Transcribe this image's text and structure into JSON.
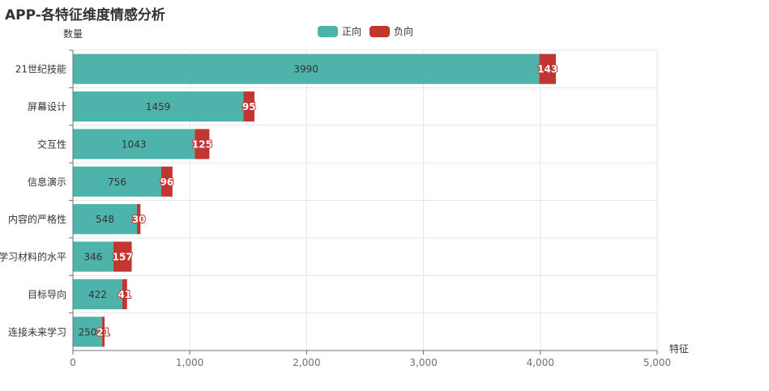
{
  "title": "APP-各特征维度情感分析",
  "colors": {
    "positive": "#4db3ab",
    "negative": "#c23531"
  },
  "chart_data": {
    "type": "bar",
    "orientation": "horizontal",
    "stacked": true,
    "title": "APP-各特征维度情感分析",
    "xlabel": "特征",
    "ylabel": "数量",
    "xlim": [
      0,
      5000
    ],
    "xticks": [
      "0",
      "1,000",
      "2,000",
      "3,000",
      "4,000",
      "5,000"
    ],
    "grid": true,
    "legend_position": "top-center",
    "categories": [
      "连接未来学习",
      "目标导向",
      "学习材料的水平",
      "内容的严格性",
      "信息演示",
      "交互性",
      "屏幕设计",
      "21世纪技能"
    ],
    "series": [
      {
        "name": "正向",
        "color": "#4db3ab",
        "values": [
          250,
          422,
          346,
          548,
          756,
          1043,
          1459,
          3990
        ]
      },
      {
        "name": "负向",
        "color": "#c23531",
        "values": [
          21,
          41,
          157,
          30,
          96,
          125,
          95,
          143
        ]
      }
    ]
  }
}
